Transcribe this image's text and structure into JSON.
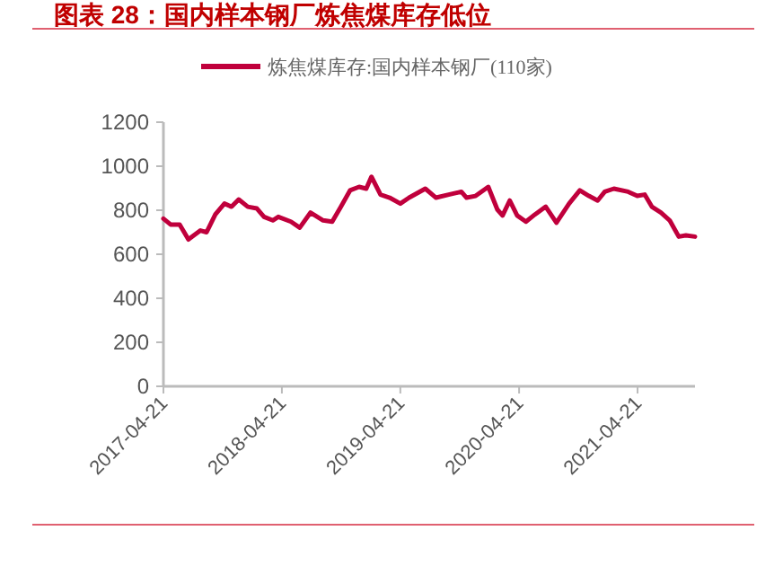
{
  "chart_data": {
    "type": "line",
    "title": "图表 28：国内样本钢厂炼焦煤库存低位",
    "x": [
      "2017-04-21",
      "2017-05-13",
      "2017-06-10",
      "2017-07-07",
      "2017-08-13",
      "2017-09-01",
      "2017-09-28",
      "2017-10-26",
      "2017-11-17",
      "2017-12-09",
      "2018-01-06",
      "2018-02-03",
      "2018-02-25",
      "2018-03-24",
      "2018-04-10",
      "2018-05-19",
      "2018-06-15",
      "2018-07-18",
      "2018-08-26",
      "2018-09-23",
      "2018-10-20",
      "2018-11-17",
      "2018-12-15",
      "2019-01-06",
      "2019-01-22",
      "2019-02-19",
      "2019-03-19",
      "2019-04-21",
      "2019-05-18",
      "2019-07-07",
      "2019-08-09",
      "2019-09-17",
      "2019-10-26",
      "2019-11-11",
      "2019-12-09",
      "2020-01-17",
      "2020-02-14",
      "2020-03-01",
      "2020-03-23",
      "2020-04-15",
      "2020-05-12",
      "2020-06-09",
      "2020-07-12",
      "2020-08-14",
      "2020-09-22",
      "2020-10-25",
      "2020-11-22",
      "2020-12-19",
      "2021-01-10",
      "2021-02-07",
      "2021-03-23",
      "2021-04-20",
      "2021-05-13",
      "2021-06-04",
      "2021-07-02",
      "2021-07-29",
      "2021-08-26",
      "2021-09-17",
      "2021-10-15"
    ],
    "series": [
      {
        "name": "炼焦煤库存:国内样本钢厂(110家)",
        "color": "#c0003c",
        "values": [
          762,
          735,
          735,
          667,
          708,
          700,
          781,
          830,
          816,
          849,
          816,
          808,
          770,
          754,
          770,
          748,
          721,
          789,
          754,
          748,
          816,
          890,
          906,
          898,
          952,
          871,
          857,
          830,
          857,
          898,
          857,
          871,
          884,
          857,
          865,
          906,
          803,
          776,
          844,
          776,
          748,
          781,
          816,
          743,
          830,
          890,
          865,
          844,
          884,
          898,
          884,
          865,
          871,
          816,
          789,
          754,
          680,
          686,
          680
        ]
      }
    ],
    "xlim": [
      "2017-04-21",
      "2021-10-15"
    ],
    "xticks": [
      "2017-04-21",
      "2018-04-21",
      "2019-04-21",
      "2020-04-21",
      "2021-04-21"
    ],
    "ylim": [
      0,
      1200
    ],
    "yticks": [
      0,
      200,
      400,
      600,
      800,
      1000,
      1200
    ],
    "legend": "top",
    "marker": "none",
    "line_style": "solid"
  }
}
